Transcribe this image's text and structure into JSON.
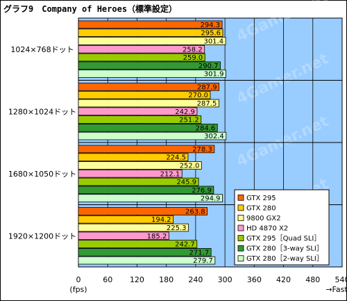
{
  "chart_data": {
    "type": "bar",
    "orientation": "horizontal",
    "title": "グラフ9　Company of Heroes（標準設定）",
    "categories": [
      "1024×768ドット",
      "1280×1024ドット",
      "1680×1050ドット",
      "1920×1200ドット"
    ],
    "series": [
      {
        "name": "GTX 295",
        "color": "#ff6600",
        "values": [
          294.3,
          287.9,
          278.3,
          263.8
        ]
      },
      {
        "name": "GTX 280",
        "color": "#ffcc00",
        "values": [
          295.6,
          270.0,
          224.5,
          194.2
        ]
      },
      {
        "name": "9800 GX2",
        "color": "#ffff99",
        "values": [
          301.4,
          287.5,
          252.0,
          225.3
        ]
      },
      {
        "name": "HD 4870 X2",
        "color": "#ff99cc",
        "values": [
          258.2,
          242.9,
          212.1,
          185.2
        ]
      },
      {
        "name": "GTX 295［Quad SLI］",
        "color": "#99cc00",
        "values": [
          259.0,
          251.2,
          245.9,
          242.7
        ]
      },
      {
        "name": "GTX 280［3-way SLI］",
        "color": "#339933",
        "values": [
          290.7,
          284.6,
          276.9,
          271.7
        ]
      },
      {
        "name": "GTX 280［2-way SLI］",
        "color": "#ccffcc",
        "values": [
          301.9,
          302.4,
          294.9,
          279.7
        ]
      }
    ],
    "value_labels": [
      [
        "294.3",
        "295.6",
        "301.4",
        "258.2",
        "259.0",
        "290.7",
        "301.9"
      ],
      [
        "287.9",
        "270.0",
        "287.5",
        "242.9",
        "251.2",
        "284.6",
        "302.4"
      ],
      [
        "278.3",
        "224.5",
        "252.0",
        "212.1",
        "245.9",
        "276.9",
        "294.9"
      ],
      [
        "263.8",
        "194.2",
        "225.3",
        "185.2",
        "242.7",
        "271.7",
        "279.7"
      ]
    ],
    "xlim": [
      0,
      540
    ],
    "xticks": [
      "0",
      "60",
      "120",
      "180",
      "240",
      "300",
      "360",
      "420",
      "480",
      "540"
    ],
    "xlabel": "(fps)",
    "x_note": "→Fast",
    "grid": true,
    "legend_position": "bottom-right",
    "colors": {
      "plot_background": "#99ccff",
      "watermark": "4Gamer.net"
    }
  }
}
